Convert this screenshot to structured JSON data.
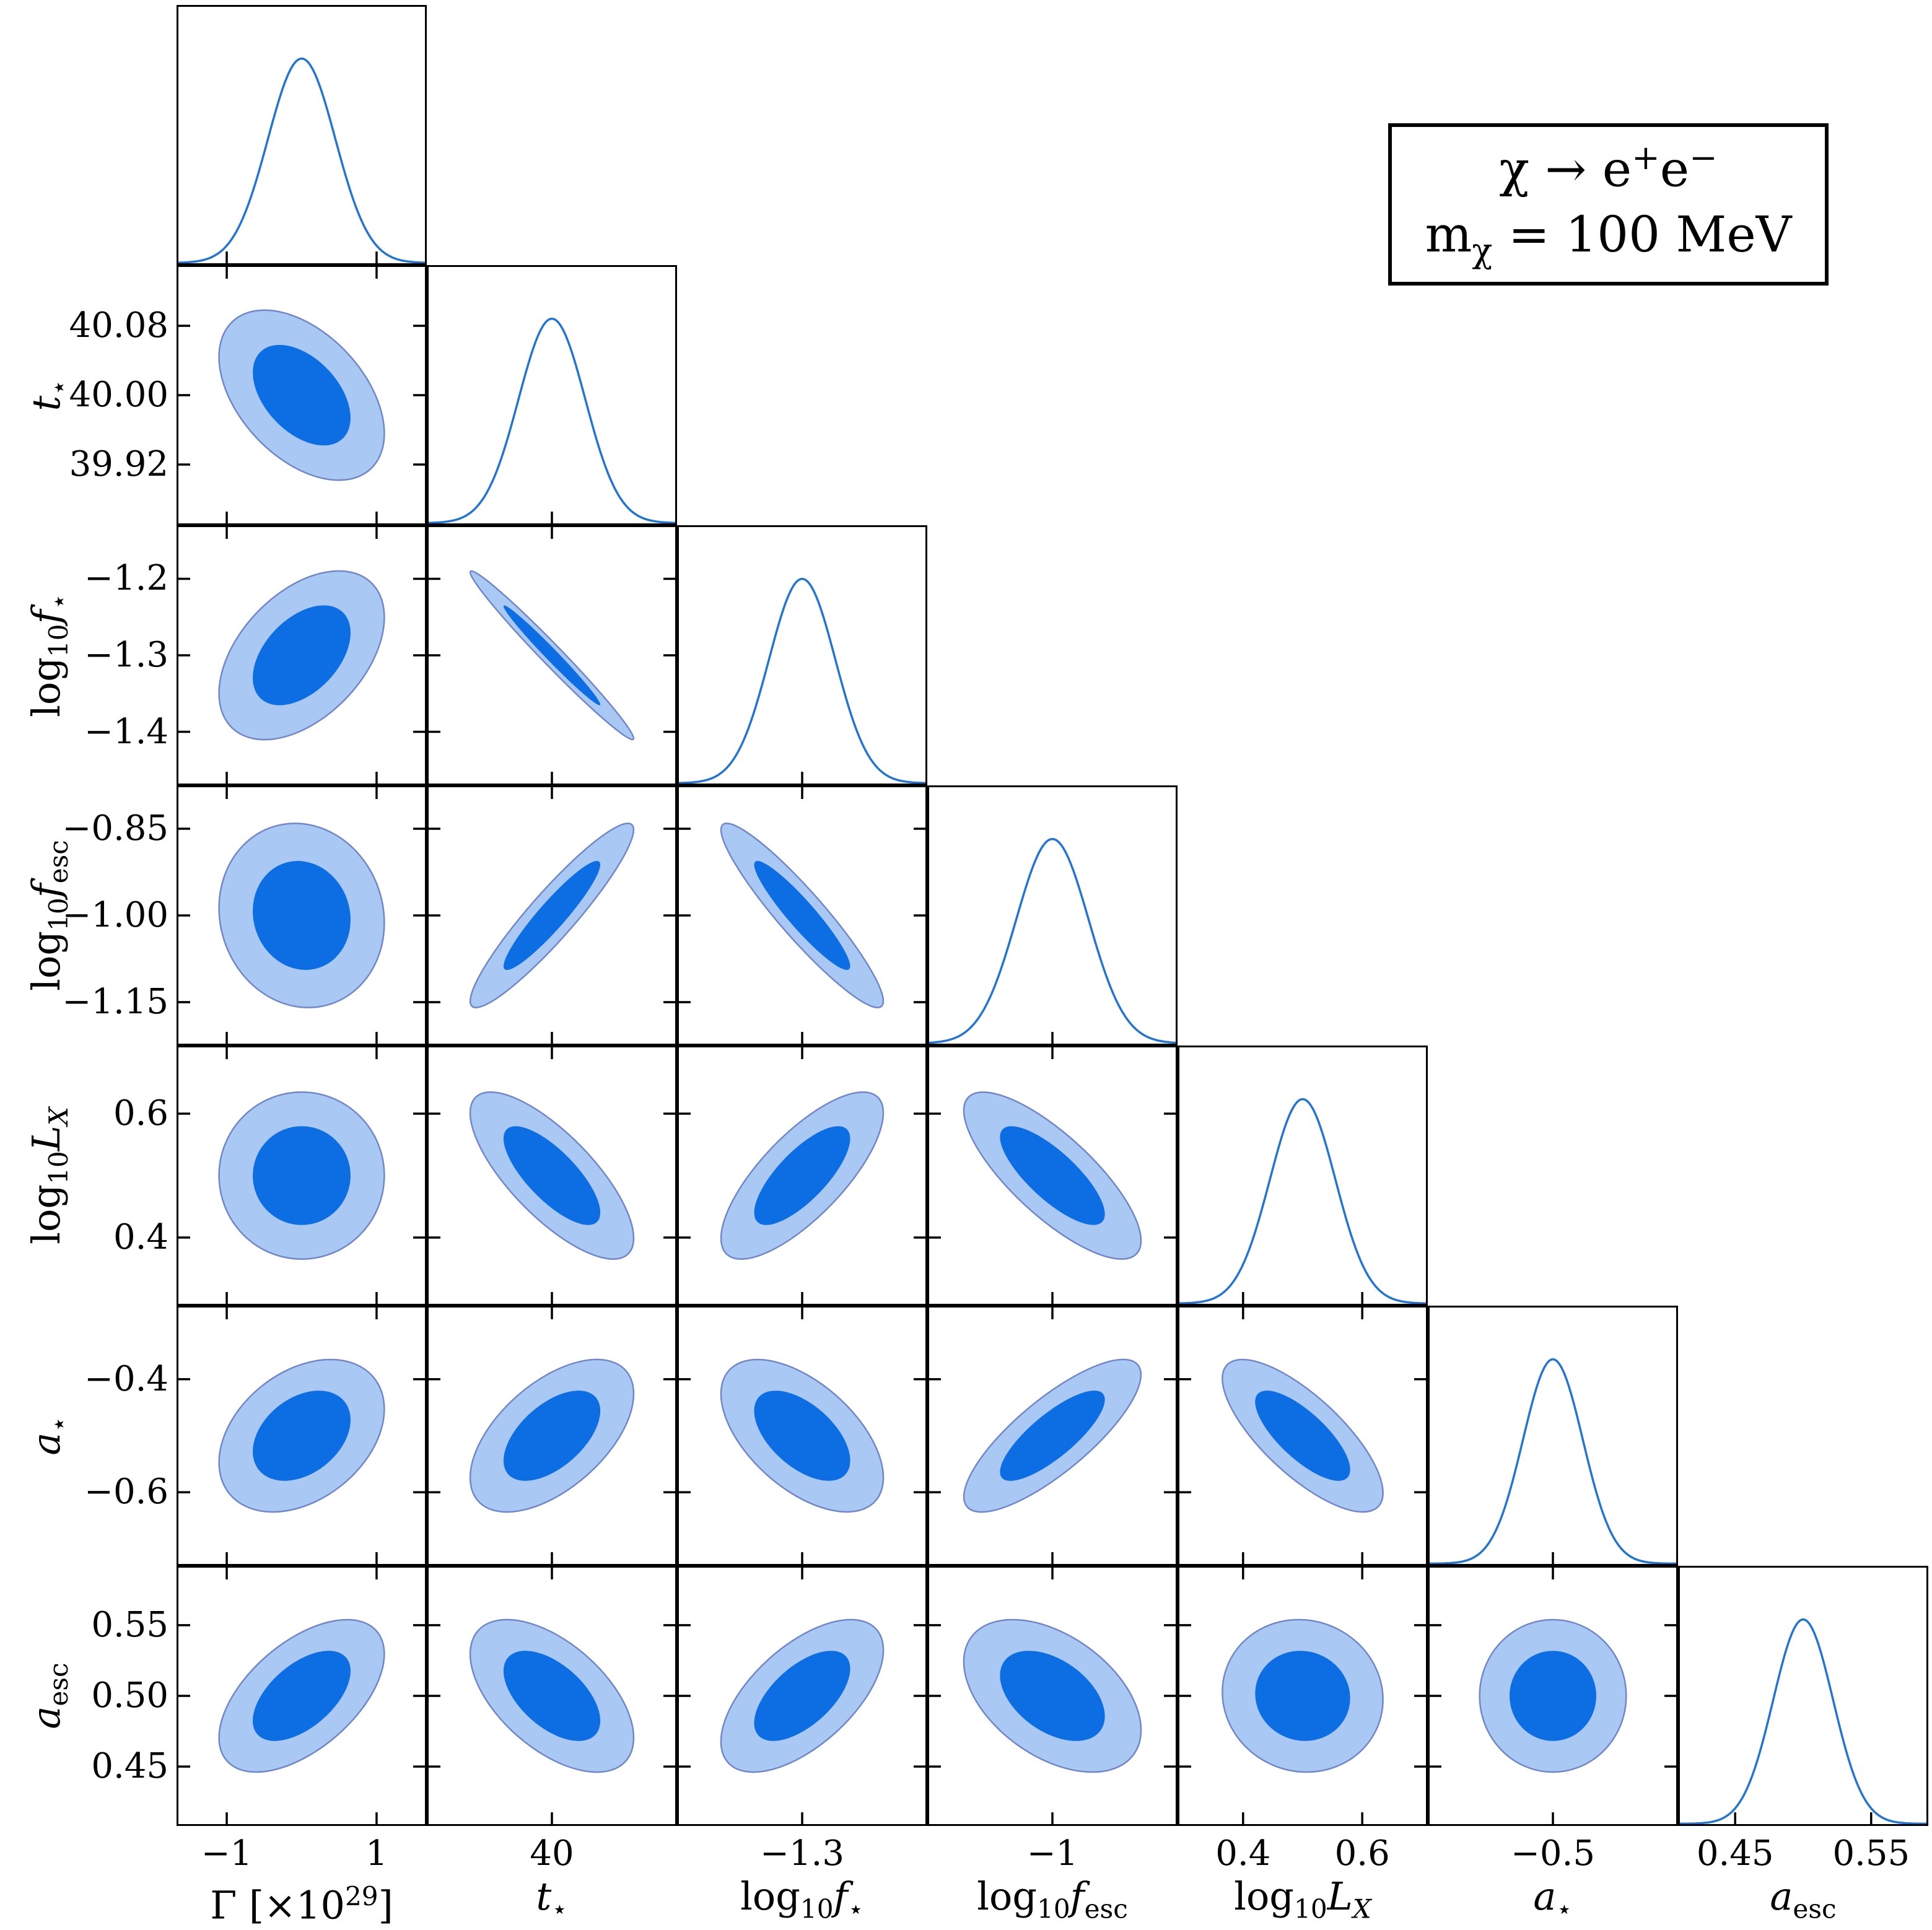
{
  "legend": {
    "lines": [
      "χ → e<sup>+</sup>e<sup>−</sup>",
      "m<sub>χ</sub> = 100 MeV"
    ]
  },
  "chart_data": {
    "type": "corner-contour-matrix",
    "description": "Lower-triangle corner plot of posterior constraints: 7 parameters, 1D marginal Gaussians on the diagonal and 1-sigma / 2-sigma contour ellipses off-diagonal",
    "legend_lines": [
      "χ → e<sup>+</sup>e<sup>−</sup>",
      "m<sub>χ</sub> = 100 MeV"
    ],
    "colors": {
      "sigma1_fill": "#0d6ee3",
      "sigma2_fill": "#a9c9f4",
      "contour_edge": "#7187c7",
      "curve_line": "#2274d5",
      "axis": "#000000",
      "background": "#ffffff"
    },
    "contour_scales": {
      "outer": 2.45,
      "inner": 1.45
    },
    "params": [
      {
        "id": "gamma",
        "label_html": "Γ [×10<sup>29</sup>]",
        "range": [
          -1.67,
          1.67
        ],
        "mean": 0.0,
        "sigma": 0.45,
        "xticks": [
          -1,
          1
        ],
        "xtick_labels": [
          "−1",
          "1"
        ],
        "yticks": [],
        "ytick_labels": []
      },
      {
        "id": "tstar",
        "label_html": "<i>t</i><sub>⋆</sub>",
        "range": [
          39.85,
          40.15
        ],
        "mean": 40.0,
        "sigma": 0.04,
        "xticks": [
          40
        ],
        "xtick_labels": [
          "40"
        ],
        "yticks": [
          40.08,
          40.0,
          39.92
        ],
        "ytick_labels": [
          "40.08",
          "40.00",
          "39.92"
        ]
      },
      {
        "id": "log10fstar",
        "label_html": "log<sub>10</sub><i>f</i><sub>⋆</sub>",
        "range": [
          -1.47,
          -1.13
        ],
        "mean": -1.3,
        "sigma": 0.045,
        "xticks": [
          -1.3
        ],
        "xtick_labels": [
          "−1.3"
        ],
        "yticks": [
          -1.2,
          -1.3,
          -1.4
        ],
        "ytick_labels": [
          "−1.2",
          "−1.3",
          "−1.4"
        ]
      },
      {
        "id": "log10fesc",
        "label_html": "log<sub>10</sub><i>f</i><sub>esc</sub>",
        "range": [
          -1.225,
          -0.775
        ],
        "mean": -1.0,
        "sigma": 0.065,
        "xticks": [
          -1
        ],
        "xtick_labels": [
          "−1"
        ],
        "yticks": [
          -0.85,
          -1.0,
          -1.15
        ],
        "ytick_labels": [
          "−0.85",
          "−1.00",
          "−1.15"
        ]
      },
      {
        "id": "log10LX",
        "label_html": "log<sub>10</sub><i>L</i><sub><i>X</i></sub>",
        "range": [
          0.29,
          0.71
        ],
        "mean": 0.5,
        "sigma": 0.055,
        "xticks": [
          0.4,
          0.6
        ],
        "xtick_labels": [
          "0.4",
          "0.6"
        ],
        "yticks": [
          0.6,
          0.4
        ],
        "ytick_labels": [
          "0.6",
          "0.4"
        ]
      },
      {
        "id": "astar",
        "label_html": "<i>a</i><sub>⋆</sub>",
        "range": [
          -0.73,
          -0.27
        ],
        "mean": -0.5,
        "sigma": 0.055,
        "xticks": [
          -0.5
        ],
        "xtick_labels": [
          "−0.5"
        ],
        "yticks": [
          -0.4,
          -0.6
        ],
        "ytick_labels": [
          "−0.4",
          "−0.6"
        ]
      },
      {
        "id": "aesc",
        "label_html": "<i>a</i><sub>esc</sub>",
        "range": [
          0.408,
          0.592
        ],
        "mean": 0.5,
        "sigma": 0.022,
        "xticks": [
          0.45,
          0.55
        ],
        "xtick_labels": [
          "0.45",
          "0.55"
        ],
        "yticks": [
          0.55,
          0.5,
          0.45
        ],
        "ytick_labels": [
          "0.55",
          "0.50",
          "0.45"
        ]
      }
    ],
    "correlations": [
      {
        "r": 1,
        "c": 0,
        "rho": -0.45
      },
      {
        "r": 2,
        "c": 0,
        "rho": 0.45
      },
      {
        "r": 2,
        "c": 1,
        "rho": -0.985
      },
      {
        "r": 3,
        "c": 0,
        "rho": -0.08
      },
      {
        "r": 3,
        "c": 1,
        "rho": 0.93
      },
      {
        "r": 3,
        "c": 2,
        "rho": -0.93
      },
      {
        "r": 4,
        "c": 0,
        "rho": 0.0
      },
      {
        "r": 4,
        "c": 1,
        "rho": -0.75
      },
      {
        "r": 4,
        "c": 2,
        "rho": 0.75
      },
      {
        "r": 4,
        "c": 3,
        "rho": -0.78
      },
      {
        "r": 5,
        "c": 0,
        "rho": 0.35
      },
      {
        "r": 5,
        "c": 1,
        "rho": 0.55
      },
      {
        "r": 5,
        "c": 2,
        "rho": -0.55
      },
      {
        "r": 5,
        "c": 3,
        "rho": 0.8
      },
      {
        "r": 5,
        "c": 4,
        "rho": -0.75
      },
      {
        "r": 6,
        "c": 0,
        "rho": 0.55
      },
      {
        "r": 6,
        "c": 1,
        "rho": -0.55
      },
      {
        "r": 6,
        "c": 2,
        "rho": 0.6
      },
      {
        "r": 6,
        "c": 3,
        "rho": -0.45
      },
      {
        "r": 6,
        "c": 4,
        "rho": -0.05
      },
      {
        "r": 6,
        "c": 5,
        "rho": 0.0
      }
    ],
    "layout": {
      "grid": "7x7 lower triangle",
      "diagonal": "1D Gaussian curves",
      "ticks": "inward, all four edges on 2D panels, bottom only on diagonals",
      "legend_position": "top-right boxed"
    }
  }
}
